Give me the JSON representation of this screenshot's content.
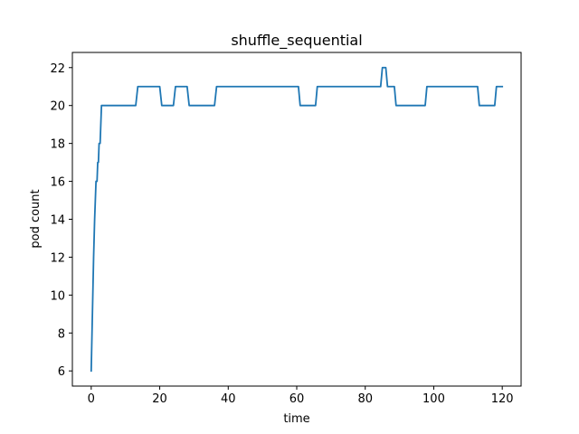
{
  "chart_data": {
    "type": "line",
    "title": "shuffle_sequential",
    "xlabel": "time",
    "ylabel": "pod count",
    "xlim": [
      -5.5,
      125.5
    ],
    "ylim": [
      5.2,
      22.8
    ],
    "xticks": [
      0,
      20,
      40,
      60,
      80,
      100,
      120
    ],
    "yticks": [
      6,
      8,
      10,
      12,
      14,
      16,
      18,
      20,
      22
    ],
    "grid": false,
    "series": [
      {
        "color": "#1f77b4",
        "x": [
          0,
          0.7,
          1.0,
          1.4,
          1.7,
          1.9,
          2.1,
          2.3,
          2.6,
          3.0,
          13.0,
          13.6,
          20.0,
          20.6,
          24.0,
          24.6,
          28.0,
          28.6,
          36.0,
          36.6,
          60.5,
          61.0,
          65.5,
          66.0,
          84.5,
          85.0,
          86.0,
          86.5,
          88.5,
          89.0,
          97.5,
          98.0,
          112.8,
          113.3,
          117.8,
          118.3,
          120.0
        ],
        "y": [
          6,
          12,
          14,
          16,
          16,
          17,
          17,
          18,
          18,
          20,
          20,
          21,
          21,
          20,
          20,
          21,
          21,
          20,
          20,
          21,
          21,
          20,
          20,
          21,
          21,
          22,
          22,
          21,
          21,
          20,
          20,
          21,
          21,
          20,
          20,
          21,
          21
        ]
      }
    ]
  }
}
